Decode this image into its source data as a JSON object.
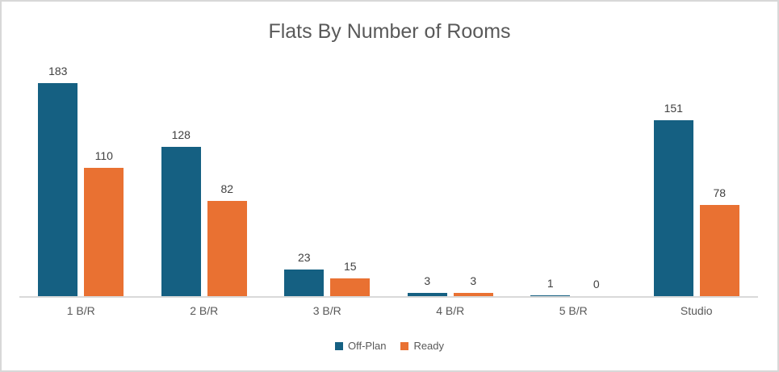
{
  "chart_data": {
    "type": "bar",
    "title": "Flats By Number of Rooms",
    "categories": [
      "1 B/R",
      "2 B/R",
      "3 B/R",
      "4 B/R",
      "5 B/R",
      "Studio"
    ],
    "series": [
      {
        "name": "Off-Plan",
        "color": "#156082",
        "values": [
          183,
          128,
          23,
          3,
          1,
          151
        ]
      },
      {
        "name": "Ready",
        "color": "#E97132",
        "values": [
          110,
          82,
          15,
          3,
          0,
          78
        ]
      }
    ],
    "ylim": [
      0,
      200
    ],
    "grid": false,
    "y_axis_visible": false,
    "data_labels": true,
    "legend_position": "bottom"
  },
  "colors": {
    "title_text": "#595959",
    "data_label_text": "#404040",
    "axis_label_text": "#595959",
    "axis_line": "#D9D9D9",
    "border": "#D8D8D8"
  }
}
